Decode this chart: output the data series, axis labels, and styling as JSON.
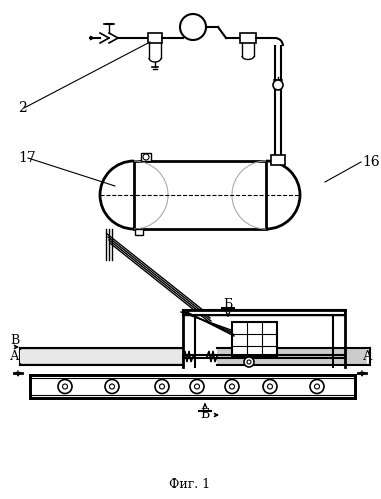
{
  "title": "Фиг. 1",
  "bg_color": "#ffffff",
  "line_color": "#000000",
  "label_2": "2",
  "label_16": "16",
  "label_17": "17",
  "label_V": "В",
  "label_A": "А",
  "label_B_sect": "Б",
  "figsize": [
    3.81,
    4.99
  ],
  "dpi": 100
}
